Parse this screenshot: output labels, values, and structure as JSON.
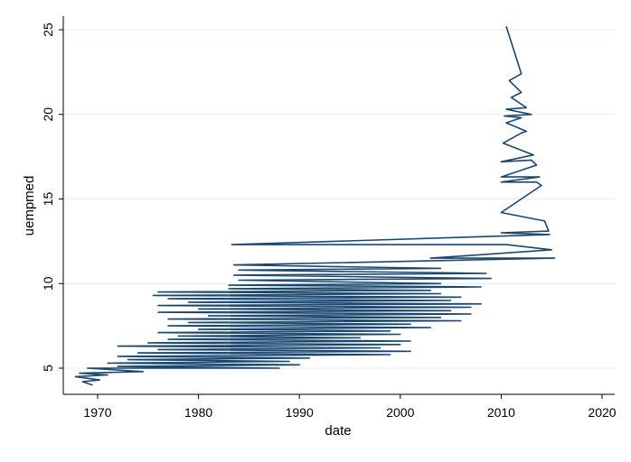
{
  "chart_data": {
    "type": "line",
    "title": "",
    "xlabel": "date",
    "ylabel": "uempmed",
    "xlim": [
      1966.5,
      2021
    ],
    "ylim": [
      3.6,
      25.8
    ],
    "xticks": [
      1970,
      1980,
      1990,
      2000,
      2010,
      2020
    ],
    "yticks": [
      5,
      10,
      15,
      20,
      25
    ],
    "grid": true,
    "line_color": "#1a476f",
    "series": [
      {
        "name": "uempmed",
        "points": [
          [
            1969.5,
            4.0
          ],
          [
            1968.5,
            4.2
          ],
          [
            1970.2,
            4.3
          ],
          [
            1967.8,
            4.5
          ],
          [
            1971,
            4.6
          ],
          [
            1968.2,
            4.7
          ],
          [
            1974.5,
            4.8
          ],
          [
            1969,
            5.0
          ],
          [
            1988,
            5.0
          ],
          [
            1972,
            5.1
          ],
          [
            1990,
            5.2
          ],
          [
            1971,
            5.3
          ],
          [
            1989,
            5.4
          ],
          [
            1973,
            5.5
          ],
          [
            1991,
            5.6
          ],
          [
            1972,
            5.7
          ],
          [
            1999,
            5.8
          ],
          [
            1974,
            5.9
          ],
          [
            2001,
            6.0
          ],
          [
            1976,
            6.1
          ],
          [
            1998,
            6.2
          ],
          [
            1972,
            6.3
          ],
          [
            2000,
            6.4
          ],
          [
            1975,
            6.5
          ],
          [
            2001,
            6.6
          ],
          [
            1977,
            6.7
          ],
          [
            1996,
            6.8
          ],
          [
            1978,
            6.9
          ],
          [
            2000,
            7.0
          ],
          [
            1976,
            7.1
          ],
          [
            1999,
            7.2
          ],
          [
            1980,
            7.3
          ],
          [
            2003,
            7.4
          ],
          [
            1977,
            7.5
          ],
          [
            2001,
            7.6
          ],
          [
            1979,
            7.7
          ],
          [
            2006,
            7.8
          ],
          [
            1977,
            7.9
          ],
          [
            2004,
            8.0
          ],
          [
            1981,
            8.1
          ],
          [
            2007,
            8.2
          ],
          [
            1976,
            8.3
          ],
          [
            2005,
            8.4
          ],
          [
            1980,
            8.5
          ],
          [
            2007,
            8.6
          ],
          [
            1976,
            8.7
          ],
          [
            2008,
            8.8
          ],
          [
            1979,
            8.9
          ],
          [
            2005,
            9.0
          ],
          [
            1977,
            9.1
          ],
          [
            2006,
            9.2
          ],
          [
            1975.5,
            9.3
          ],
          [
            2004,
            9.4
          ],
          [
            1976,
            9.5
          ],
          [
            2003,
            9.6
          ],
          [
            1983,
            9.7
          ],
          [
            2008,
            9.8
          ],
          [
            1983,
            9.9
          ],
          [
            2004,
            10.0
          ],
          [
            1984,
            10.2
          ],
          [
            2009,
            10.3
          ],
          [
            1983.5,
            10.5
          ],
          [
            2008.5,
            10.6
          ],
          [
            1984,
            10.8
          ],
          [
            2004,
            10.9
          ],
          [
            1983.5,
            11.1
          ],
          [
            2015.3,
            11.5
          ],
          [
            2003,
            11.5
          ],
          [
            2015,
            12.0
          ],
          [
            2010.5,
            12.3
          ],
          [
            1983.3,
            12.3
          ],
          [
            2014.8,
            12.9
          ],
          [
            2010,
            13.0
          ],
          [
            2014.7,
            13.1
          ],
          [
            2014.3,
            13.7
          ],
          [
            2010,
            14.2
          ],
          [
            2014,
            15.8
          ],
          [
            2013.5,
            16.0
          ],
          [
            2010,
            16.0
          ],
          [
            2013.8,
            16.3
          ],
          [
            2010,
            16.3
          ],
          [
            2013.5,
            17.0
          ],
          [
            2013,
            17.3
          ],
          [
            2010,
            17.2
          ],
          [
            2013.2,
            17.6
          ],
          [
            2010.2,
            18.3
          ],
          [
            2012,
            18.9
          ],
          [
            2012.5,
            19.0
          ],
          [
            2010.5,
            19.5
          ],
          [
            2012,
            19.8
          ],
          [
            2010.3,
            19.9
          ],
          [
            2013,
            20.0
          ],
          [
            2010.5,
            20.3
          ],
          [
            2012.5,
            20.4
          ],
          [
            2011,
            21.0
          ],
          [
            2012,
            21.3
          ],
          [
            2010.8,
            22.0
          ],
          [
            2012,
            22.4
          ],
          [
            2010.5,
            25.2
          ]
        ]
      }
    ]
  }
}
